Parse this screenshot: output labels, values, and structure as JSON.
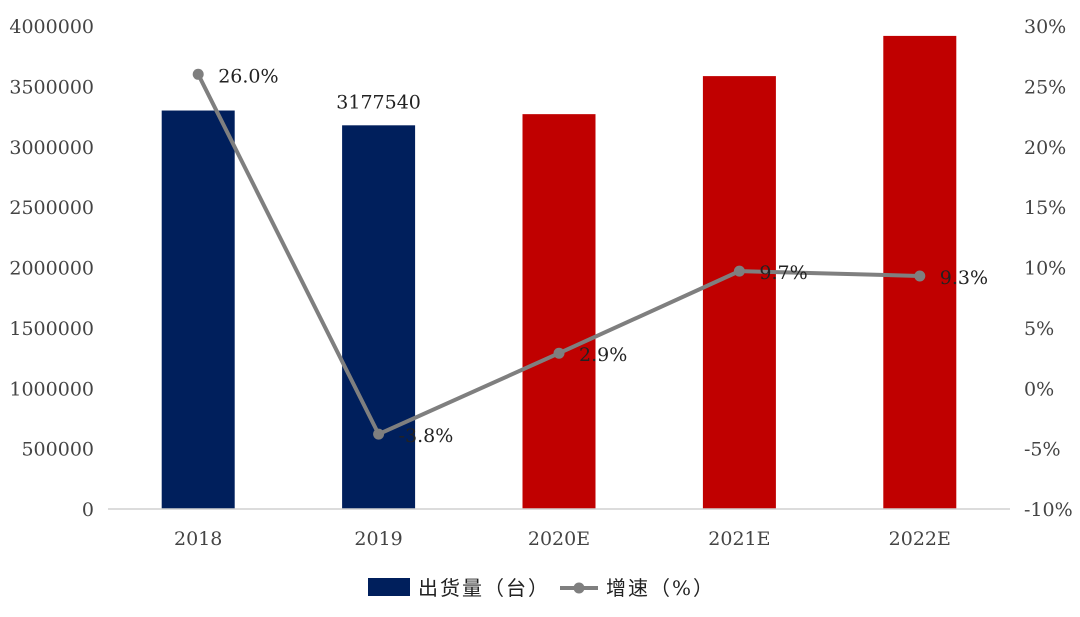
{
  "chart_data": {
    "type": "bar",
    "categories": [
      "2018",
      "2019",
      "2020E",
      "2021E",
      "2022E"
    ],
    "series": [
      {
        "name": "出货量（台）",
        "type": "bar",
        "axis": "left",
        "values": [
          3300000,
          3177540,
          3270000,
          3585000,
          3918000
        ],
        "colors": [
          "#001f5c",
          "#001f5c",
          "#c00000",
          "#c00000",
          "#c00000"
        ],
        "data_labels": [
          "",
          "3177540",
          "",
          "",
          ""
        ]
      },
      {
        "name": "增速（%）",
        "type": "line",
        "axis": "right",
        "values": [
          26.0,
          -3.8,
          2.9,
          9.7,
          9.3
        ],
        "color": "#7f7f7f",
        "data_labels": [
          "26.0%",
          "-3.8%",
          "2.9%",
          "9.7%",
          "9.3%"
        ]
      }
    ],
    "y_left": {
      "ylim": [
        0,
        4000000
      ],
      "ticks": [
        "0",
        "500000",
        "1000000",
        "1500000",
        "2000000",
        "2500000",
        "3000000",
        "3500000",
        "4000000"
      ]
    },
    "y_right": {
      "ylim": [
        -10,
        30
      ],
      "ticks": [
        "-10%",
        "-5%",
        "0%",
        "5%",
        "10%",
        "15%",
        "20%",
        "25%",
        "30%"
      ]
    },
    "legend": {
      "position": "bottom",
      "items": [
        "出货量（台）",
        "增速（%）"
      ]
    },
    "grid": false
  }
}
